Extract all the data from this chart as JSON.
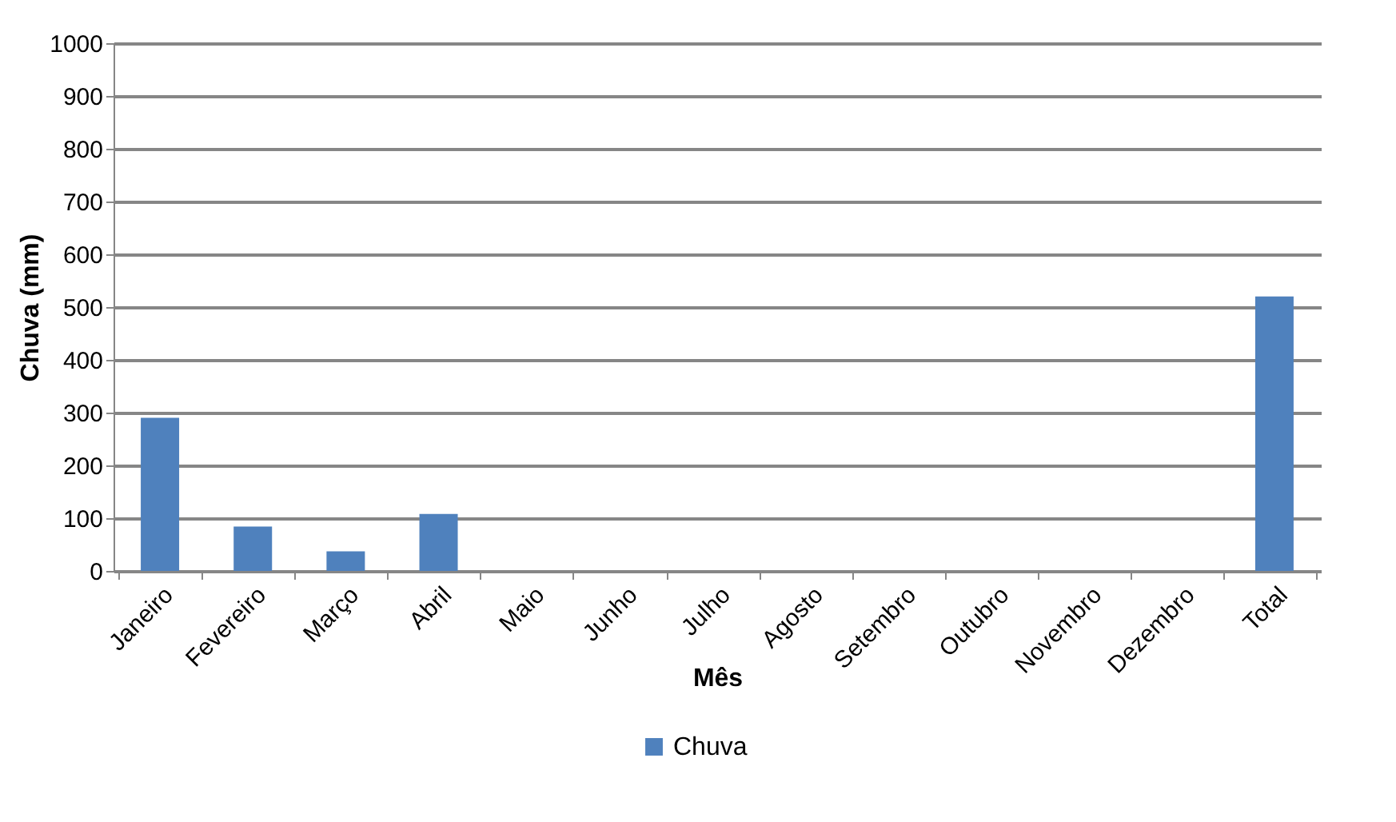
{
  "chart_data": {
    "type": "bar",
    "xlabel": "Mês",
    "ylabel": "Chuva (mm)",
    "categories": [
      "Janeiro",
      "Fevereiro",
      "Março",
      "Abril",
      "Maio",
      "Junho",
      "Julho",
      "Agosto",
      "Setembro",
      "Outubro",
      "Novembro",
      "Dezembro",
      "Total"
    ],
    "series": [
      {
        "name": "Chuva",
        "color": "#4f81bd",
        "values": [
          290,
          84,
          37,
          108,
          0,
          0,
          0,
          0,
          0,
          0,
          0,
          0,
          520
        ]
      }
    ],
    "ylim": [
      0,
      1000
    ],
    "yticks": [
      0,
      100,
      200,
      300,
      400,
      500,
      600,
      700,
      800,
      900,
      1000
    ],
    "grid": "y",
    "legend": "bottom"
  }
}
